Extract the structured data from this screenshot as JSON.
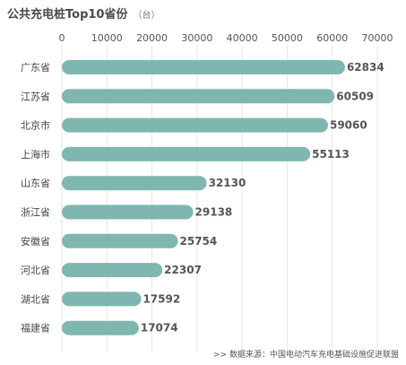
{
  "chart_data": {
    "type": "bar",
    "orientation": "horizontal",
    "title": "公共充电桩Top10省份",
    "unit": "（台）",
    "categories": [
      "广东省",
      "江苏省",
      "北京市",
      "上海市",
      "山东省",
      "浙江省",
      "安徽省",
      "河北省",
      "湖北省",
      "福建省"
    ],
    "values": [
      62834,
      60509,
      59060,
      55113,
      32130,
      29138,
      25754,
      22307,
      17592,
      17074
    ],
    "xlim": [
      0,
      70000
    ],
    "xticks": [
      0,
      10000,
      20000,
      30000,
      40000,
      50000,
      60000,
      70000
    ],
    "axis_position": "top",
    "grid": true,
    "bar_color": "#7fb7b0",
    "source": ">>  数据来源：中国电动汽车充电基础设施促进联盟"
  }
}
